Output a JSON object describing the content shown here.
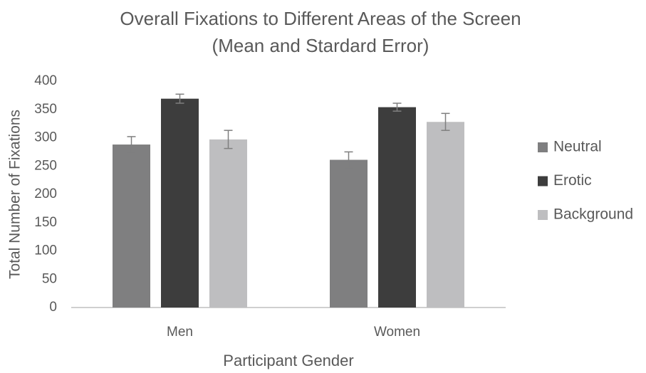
{
  "chart_data": {
    "type": "bar",
    "title": "Overall Fixations to Different Areas of the Screen",
    "subtitle": "(Mean and Stardard Error)",
    "x_label": "Participant Gender",
    "y_label": "Total Number of Fixations",
    "categories": [
      "Men",
      "Women"
    ],
    "series": [
      {
        "name": "Neutral",
        "color": "#7f7f80",
        "values": [
          288,
          261
        ],
        "errors": [
          14,
          14
        ]
      },
      {
        "name": "Erotic",
        "color": "#3d3d3d",
        "values": [
          369,
          354
        ],
        "errors": [
          8,
          7
        ]
      },
      {
        "name": "Background",
        "color": "#bebec0",
        "values": [
          297,
          328
        ],
        "errors": [
          16,
          15
        ]
      }
    ],
    "ylim": [
      0,
      400
    ],
    "yticks": [
      0,
      50,
      100,
      150,
      200,
      250,
      300,
      350,
      400
    ],
    "grid": false,
    "legend": "right"
  }
}
